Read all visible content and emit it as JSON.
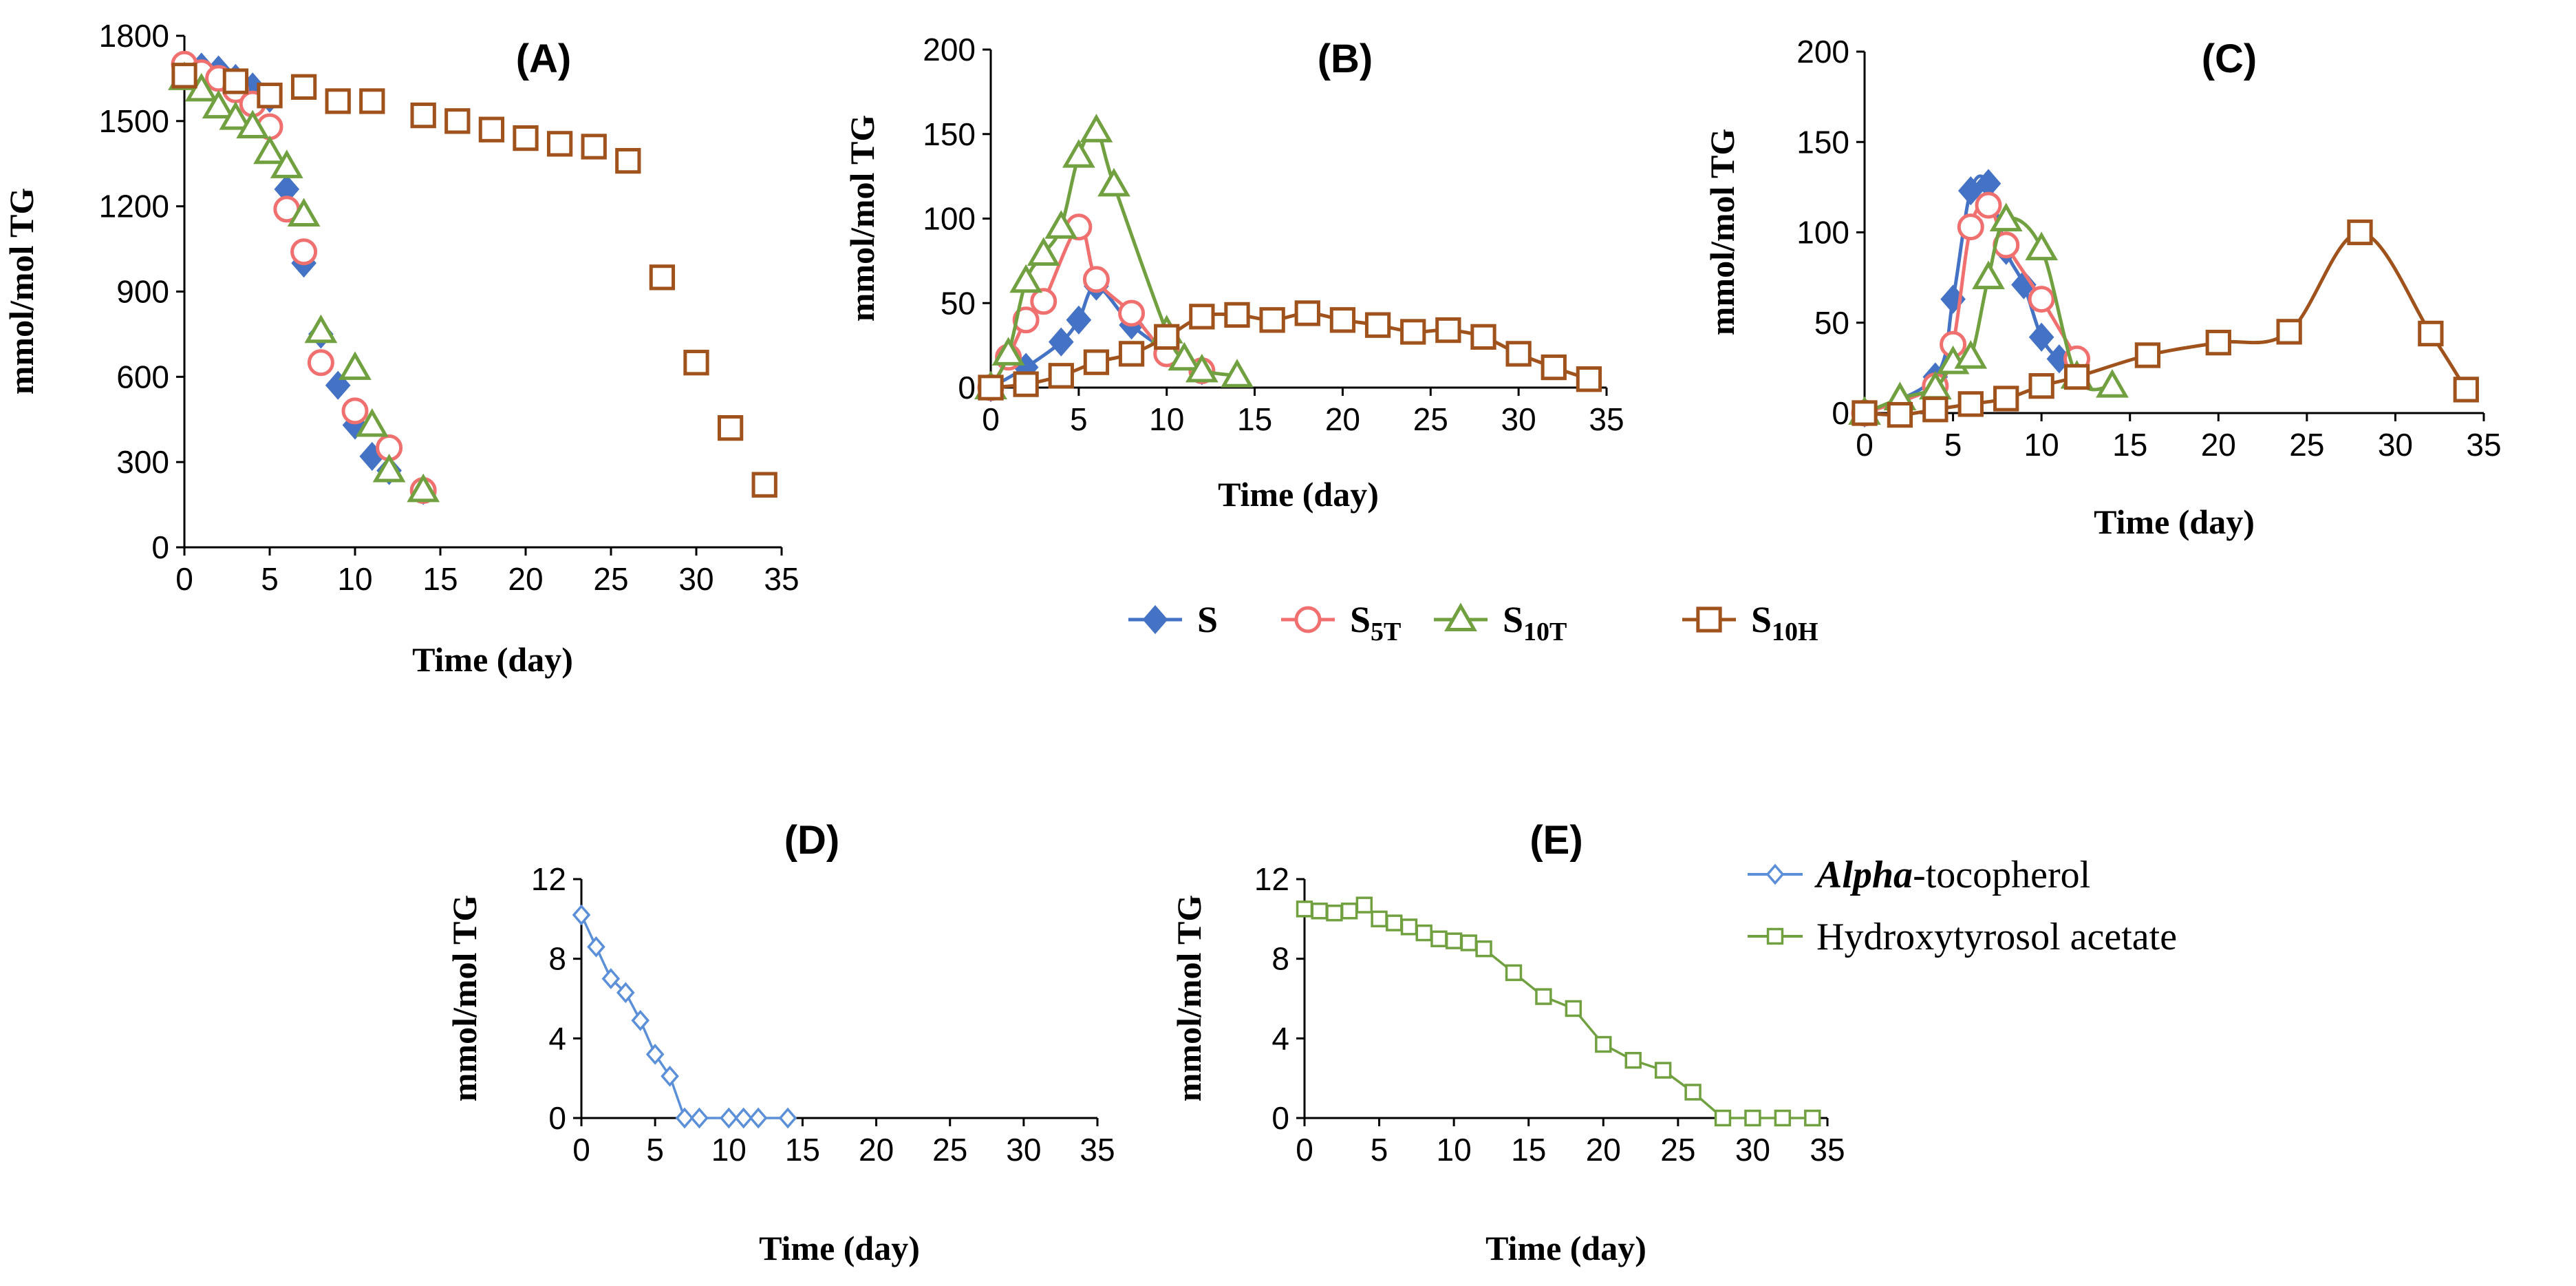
{
  "legend_main": [
    {
      "base": "S",
      "sub": "",
      "color": "#4472C4",
      "marker": "diamond"
    },
    {
      "base": "S",
      "sub": "5T",
      "color": "#F07070",
      "marker": "circle"
    },
    {
      "base": "S",
      "sub": "10T",
      "color": "#70A040",
      "marker": "triangle"
    },
    {
      "base": "S",
      "sub": "10H",
      "color": "#A0521C",
      "marker": "square"
    }
  ],
  "legend_antioxidants": [
    {
      "italic": "Alpha",
      "text": "-tocopherol",
      "color": "#5B8FD8",
      "marker": "diamond"
    },
    {
      "italic": "",
      "text": "Hydroxytyrosol acetate",
      "color": "#70A040",
      "marker": "square"
    }
  ],
  "chart_data": [
    {
      "id": "A",
      "type": "scatter",
      "title": "(A)",
      "xlabel": "Time (day)",
      "ylabel": "mmol/mol TG",
      "xlim": [
        0,
        35
      ],
      "ylim": [
        0,
        1800
      ],
      "xticks": [
        0,
        5,
        10,
        15,
        20,
        25,
        30,
        35
      ],
      "yticks": [
        0,
        300,
        600,
        900,
        1200,
        1500,
        1800
      ],
      "series": [
        {
          "name": "S",
          "color": "#4472C4",
          "marker": "diamond",
          "line": false,
          "x": [
            0,
            1,
            2,
            3,
            4,
            5,
            6,
            7,
            8,
            9,
            10,
            11,
            12,
            14
          ],
          "y": [
            1680,
            1690,
            1680,
            1650,
            1620,
            1580,
            1260,
            1000,
            750,
            570,
            430,
            320,
            270,
            200
          ]
        },
        {
          "name": "S5T",
          "color": "#F07070",
          "marker": "circle",
          "line": false,
          "x": [
            0,
            1,
            2,
            3,
            4,
            5,
            6,
            7,
            8,
            10,
            12,
            14
          ],
          "y": [
            1700,
            1670,
            1650,
            1610,
            1560,
            1480,
            1190,
            1040,
            650,
            480,
            350,
            200
          ]
        },
        {
          "name": "S10T",
          "color": "#70A040",
          "marker": "triangle",
          "line": false,
          "x": [
            0,
            1,
            2,
            3,
            4,
            5,
            6,
            7,
            8,
            10,
            11,
            12,
            14
          ],
          "y": [
            1650,
            1610,
            1550,
            1510,
            1480,
            1390,
            1340,
            1170,
            760,
            630,
            430,
            270,
            200
          ]
        },
        {
          "name": "S10H",
          "color": "#A0521C",
          "marker": "square",
          "line": false,
          "x": [
            0,
            3,
            5,
            7,
            9,
            11,
            14,
            16,
            18,
            20,
            22,
            24,
            26,
            28,
            30,
            32,
            34
          ],
          "y": [
            1660,
            1640,
            1590,
            1620,
            1570,
            1570,
            1520,
            1500,
            1470,
            1440,
            1420,
            1410,
            1360,
            950,
            650,
            420,
            220
          ]
        }
      ]
    },
    {
      "id": "B",
      "type": "line",
      "title": "(B)",
      "xlabel": "Time (day)",
      "ylabel": "mmol/mol TG",
      "xlim": [
        0,
        35
      ],
      "ylim": [
        0,
        200
      ],
      "xticks": [
        0,
        5,
        10,
        15,
        20,
        25,
        30,
        35
      ],
      "yticks": [
        0,
        50,
        100,
        150,
        200
      ],
      "series": [
        {
          "name": "S",
          "color": "#4472C4",
          "marker": "diamond",
          "line": true,
          "x": [
            0,
            2,
            4,
            5,
            6,
            8,
            10,
            12
          ],
          "y": [
            0,
            12,
            27,
            40,
            60,
            37,
            22,
            10
          ]
        },
        {
          "name": "S5T",
          "color": "#F07070",
          "marker": "circle",
          "line": true,
          "x": [
            0,
            1,
            2,
            3,
            5,
            6,
            8,
            10,
            12
          ],
          "y": [
            0,
            18,
            40,
            51,
            95,
            64,
            44,
            20,
            10
          ]
        },
        {
          "name": "S10T",
          "color": "#70A040",
          "marker": "triangle",
          "line": true,
          "x": [
            0,
            1,
            2,
            3,
            4,
            5,
            6,
            7,
            10,
            11,
            12,
            14
          ],
          "y": [
            0,
            20,
            63,
            79,
            95,
            137,
            152,
            120,
            33,
            17,
            10,
            7
          ]
        },
        {
          "name": "S10H",
          "color": "#A0521C",
          "marker": "square",
          "line": true,
          "x": [
            0,
            2,
            4,
            6,
            8,
            10,
            12,
            14,
            16,
            18,
            20,
            22,
            24,
            26,
            28,
            30,
            32,
            34
          ],
          "y": [
            0,
            2,
            7,
            15,
            20,
            30,
            42,
            43,
            40,
            44,
            40,
            37,
            33,
            34,
            30,
            20,
            12,
            5
          ]
        }
      ]
    },
    {
      "id": "C",
      "type": "line",
      "title": "(C)",
      "xlabel": "Time (day)",
      "ylabel": "mmol/mol TG",
      "xlim": [
        0,
        35
      ],
      "ylim": [
        0,
        200
      ],
      "xticks": [
        0,
        5,
        10,
        15,
        20,
        25,
        30,
        35
      ],
      "yticks": [
        0,
        50,
        100,
        150,
        200
      ],
      "series": [
        {
          "name": "S",
          "color": "#4472C4",
          "marker": "diamond",
          "line": true,
          "x": [
            0,
            4,
            5,
            6,
            7,
            8,
            9,
            10,
            11,
            12
          ],
          "y": [
            0,
            20,
            63,
            123,
            127,
            90,
            71,
            42,
            30,
            28
          ]
        },
        {
          "name": "S5T",
          "color": "#F07070",
          "marker": "circle",
          "line": true,
          "x": [
            0,
            4,
            5,
            6,
            7,
            8,
            10,
            12
          ],
          "y": [
            0,
            15,
            38,
            103,
            115,
            93,
            63,
            30
          ]
        },
        {
          "name": "S10T",
          "color": "#70A040",
          "marker": "triangle",
          "line": true,
          "x": [
            0,
            2,
            4,
            5,
            6,
            7,
            8,
            10,
            12,
            14
          ],
          "y": [
            0,
            8,
            14,
            28,
            31,
            75,
            107,
            91,
            20,
            15
          ]
        },
        {
          "name": "S10H",
          "color": "#A0521C",
          "marker": "square",
          "line": true,
          "x": [
            0,
            2,
            4,
            6,
            8,
            10,
            12,
            16,
            20,
            24,
            28,
            32,
            34
          ],
          "y": [
            0,
            -1,
            2,
            5,
            8,
            15,
            20,
            32,
            39,
            45,
            100,
            44,
            13
          ]
        }
      ]
    },
    {
      "id": "D",
      "type": "line",
      "title": "(D)",
      "xlabel": "Time (day)",
      "ylabel": "mmol/mol TG",
      "xlim": [
        0,
        35
      ],
      "ylim": [
        0,
        12
      ],
      "xticks": [
        0,
        5,
        10,
        15,
        20,
        25,
        30,
        35
      ],
      "yticks": [
        0,
        4,
        8,
        12
      ],
      "series": [
        {
          "name": "Alpha-tocopherol",
          "color": "#5B8FD8",
          "marker": "diamond",
          "line": true,
          "straight": true,
          "small": true,
          "x": [
            0,
            1,
            2,
            3,
            4,
            5,
            6,
            7,
            8,
            10,
            11,
            12,
            14
          ],
          "y": [
            10.2,
            8.6,
            7.0,
            6.3,
            4.9,
            3.2,
            2.1,
            0,
            0,
            0,
            0,
            0,
            0
          ]
        }
      ]
    },
    {
      "id": "E",
      "type": "line",
      "title": "(E)",
      "xlabel": "Time (day)",
      "ylabel": "mmol/mol TG",
      "xlim": [
        0,
        35
      ],
      "ylim": [
        0,
        12
      ],
      "xticks": [
        0,
        5,
        10,
        15,
        20,
        25,
        30,
        35
      ],
      "yticks": [
        0,
        4,
        8,
        12
      ],
      "series": [
        {
          "name": "Hydroxytyrosol acetate",
          "color": "#70A040",
          "marker": "square",
          "line": true,
          "straight": true,
          "small": true,
          "x": [
            0,
            1,
            2,
            3,
            4,
            5,
            6,
            7,
            8,
            9,
            10,
            11,
            12,
            14,
            16,
            18,
            20,
            22,
            24,
            26,
            28,
            30,
            32,
            34
          ],
          "y": [
            10.5,
            10.4,
            10.3,
            10.4,
            10.7,
            10.0,
            9.8,
            9.6,
            9.3,
            9.0,
            8.9,
            8.8,
            8.5,
            7.3,
            6.1,
            5.5,
            3.7,
            2.9,
            2.4,
            1.3,
            0,
            0,
            0,
            0
          ]
        }
      ]
    }
  ]
}
